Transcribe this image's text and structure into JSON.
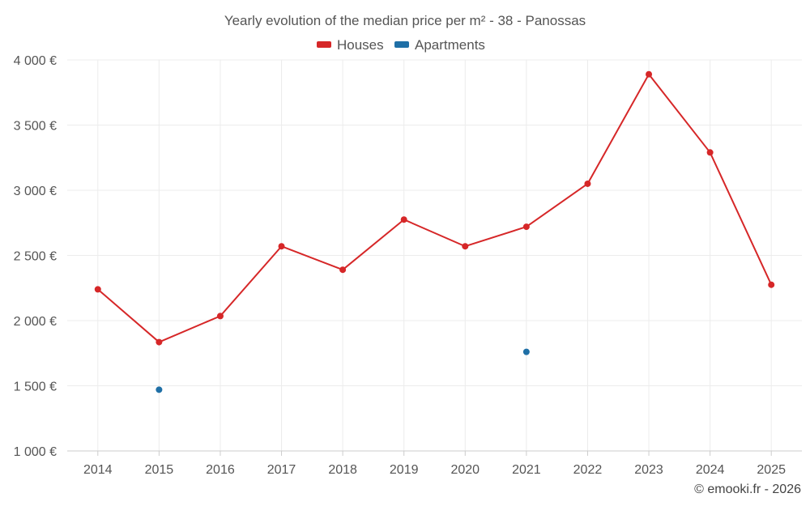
{
  "chart_data": {
    "type": "line",
    "title": "Yearly evolution of the median price per m² - 38 - Panossas",
    "categories": [
      "2014",
      "2015",
      "2016",
      "2017",
      "2018",
      "2019",
      "2020",
      "2021",
      "2022",
      "2023",
      "2024",
      "2025"
    ],
    "series": [
      {
        "name": "Houses",
        "color": "#d62728",
        "values": [
          2240,
          1835,
          2035,
          2570,
          2390,
          2775,
          2570,
          2720,
          3050,
          3890,
          3290,
          2275
        ]
      },
      {
        "name": "Apartments",
        "color": "#1f6fa6",
        "values": [
          null,
          1470,
          null,
          null,
          null,
          null,
          null,
          1760,
          null,
          null,
          null,
          null
        ]
      }
    ],
    "yticks": [
      1000,
      1500,
      2000,
      2500,
      3000,
      3500,
      4000
    ],
    "ytick_labels": [
      "1 000 €",
      "1 500 €",
      "2 000 €",
      "2 500 €",
      "3 000 €",
      "3 500 €",
      "4 000 €"
    ],
    "ylim": [
      1000,
      4000
    ],
    "xlabel": "",
    "ylabel": "",
    "legend_position": "top-center",
    "grid": true
  },
  "credit": "© emooki.fr - 2026"
}
